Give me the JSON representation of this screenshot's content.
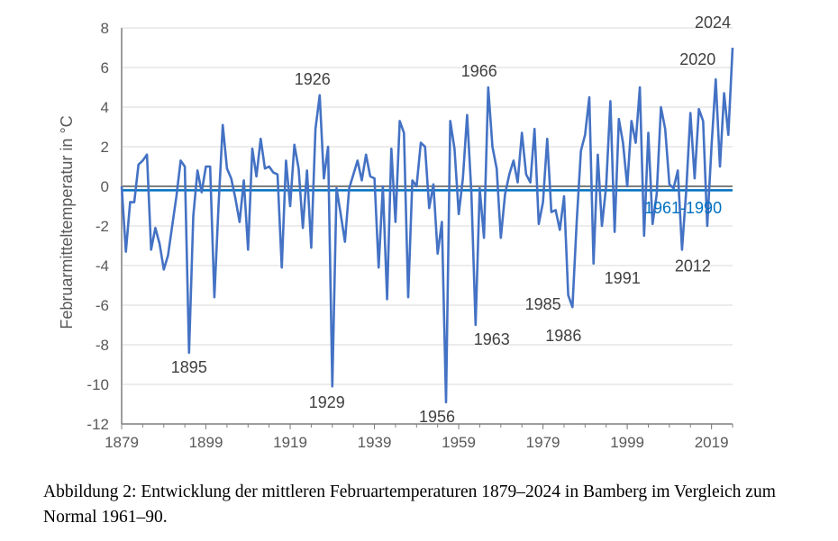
{
  "chart_data": {
    "type": "line",
    "title": "",
    "xlabel": "",
    "ylabel": "Februarmitteltemperatur in °C",
    "ylim": [
      -12,
      8
    ],
    "xlim": [
      1879,
      2024
    ],
    "yticks": [
      8,
      6,
      4,
      2,
      0,
      -2,
      -4,
      -6,
      -8,
      -10,
      -12
    ],
    "xticks": [
      1879,
      1899,
      1919,
      1939,
      1959,
      1979,
      1999,
      2019
    ],
    "grid": true,
    "series": [
      {
        "name": "Februarmittel",
        "color": "#4472C4",
        "x_start": 1879,
        "values": [
          0.0,
          -3.3,
          -0.8,
          -0.8,
          1.1,
          1.3,
          1.6,
          -3.2,
          -2.1,
          -2.9,
          -4.2,
          -3.5,
          -2.0,
          -0.5,
          1.3,
          1.0,
          -8.4,
          -1.5,
          0.8,
          -0.3,
          1.0,
          1.0,
          -5.6,
          -1.0,
          3.1,
          0.9,
          0.4,
          -0.6,
          -1.8,
          0.3,
          -3.2,
          1.9,
          0.5,
          2.4,
          0.9,
          1.0,
          0.7,
          0.6,
          -4.1,
          1.3,
          -1.0,
          2.1,
          0.9,
          -2.1,
          0.8,
          -3.1,
          2.9,
          4.6,
          0.4,
          2.0,
          -10.1,
          -0.1,
          -1.4,
          -2.8,
          -0.1,
          0.6,
          1.3,
          0.3,
          1.6,
          0.5,
          0.4,
          -4.1,
          0.0,
          -5.7,
          1.9,
          -1.8,
          3.3,
          2.7,
          -5.6,
          0.3,
          0.0,
          2.2,
          2.0,
          -1.1,
          0.1,
          -3.4,
          -1.8,
          -10.9,
          3.3,
          1.9,
          -1.4,
          0.4,
          3.6,
          -0.3,
          -7.0,
          -0.1,
          -2.6,
          5.0,
          2.0,
          0.9,
          -2.6,
          -0.4,
          0.6,
          1.3,
          0.2,
          2.7,
          0.6,
          0.2,
          2.9,
          -1.9,
          -0.8,
          2.4,
          -1.3,
          -1.2,
          -2.2,
          -0.5,
          -5.5,
          -6.1,
          -1.8,
          1.8,
          2.6,
          4.5,
          -3.9,
          1.6,
          -2.0,
          0.0,
          4.3,
          -2.3,
          3.4,
          2.2,
          0.0,
          3.3,
          2.2,
          5.0,
          -2.5,
          2.7,
          -1.9,
          -0.4,
          4.0,
          2.9,
          0.1,
          -0.1,
          0.8,
          -3.2,
          -0.2,
          3.7,
          0.4,
          3.9,
          3.3,
          -2.0,
          2.0,
          5.4,
          1.0,
          4.7,
          2.6,
          7.0
        ]
      }
    ],
    "reference_lines": [
      {
        "name": "zero",
        "value": 0,
        "color": "#7F7F7F"
      },
      {
        "name": "1961-1990",
        "label": "1961-1990",
        "value": -0.2,
        "color": "#0070C0"
      }
    ],
    "annotations": [
      {
        "text": "1895",
        "year": 1895
      },
      {
        "text": "1926",
        "year": 1926
      },
      {
        "text": "1929",
        "year": 1929
      },
      {
        "text": "1956",
        "year": 1956
      },
      {
        "text": "1963",
        "year": 1963
      },
      {
        "text": "1966",
        "year": 1966
      },
      {
        "text": "1985",
        "year": 1985
      },
      {
        "text": "1986",
        "year": 1986
      },
      {
        "text": "1991",
        "year": 1991
      },
      {
        "text": "2012",
        "year": 2012
      },
      {
        "text": "2020",
        "year": 2020
      },
      {
        "text": "2024",
        "year": 2024
      }
    ]
  },
  "caption": "Abbildung 2: Entwicklung der mittleren Februartemperaturen 1879–2024 in Bamberg im Vergleich zum Normal 1961–90."
}
